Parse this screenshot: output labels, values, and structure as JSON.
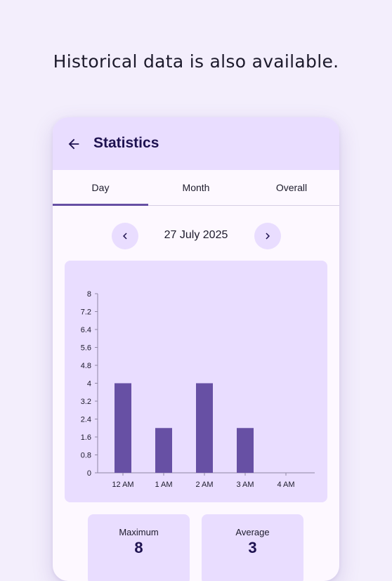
{
  "caption": "Historical data is also available.",
  "appbar": {
    "title": "Statistics",
    "back_icon": "arrow-back-icon"
  },
  "tabs": [
    {
      "label": "Day",
      "selected": true
    },
    {
      "label": "Month",
      "selected": false
    },
    {
      "label": "Overall",
      "selected": false
    }
  ],
  "date_nav": {
    "date": "27 July 2025",
    "prev_icon": "chevron-left-icon",
    "next_icon": "chevron-right-icon"
  },
  "chart_data": {
    "type": "bar",
    "categories": [
      "12 AM",
      "1 AM",
      "2 AM",
      "3 AM",
      "4 AM"
    ],
    "values": [
      4,
      2,
      4,
      2,
      0
    ],
    "ylim": [
      0,
      8
    ],
    "yticks": [
      "0",
      "0.8",
      "1.6",
      "2.4",
      "3.2",
      "4",
      "4.8",
      "5.6",
      "6.4",
      "7.2",
      "8"
    ],
    "xlabel": "",
    "ylabel": "",
    "grid": false,
    "bar_color": "#6750a4"
  },
  "stats": {
    "maximum": {
      "label": "Maximum",
      "value": "8"
    },
    "average": {
      "label": "Average",
      "value": "3"
    }
  },
  "colors": {
    "background": "#f3eefc",
    "surface": "#fdf8ff",
    "container": "#e9ddff",
    "primary": "#6750a4",
    "on_primary_container": "#1e1250"
  }
}
